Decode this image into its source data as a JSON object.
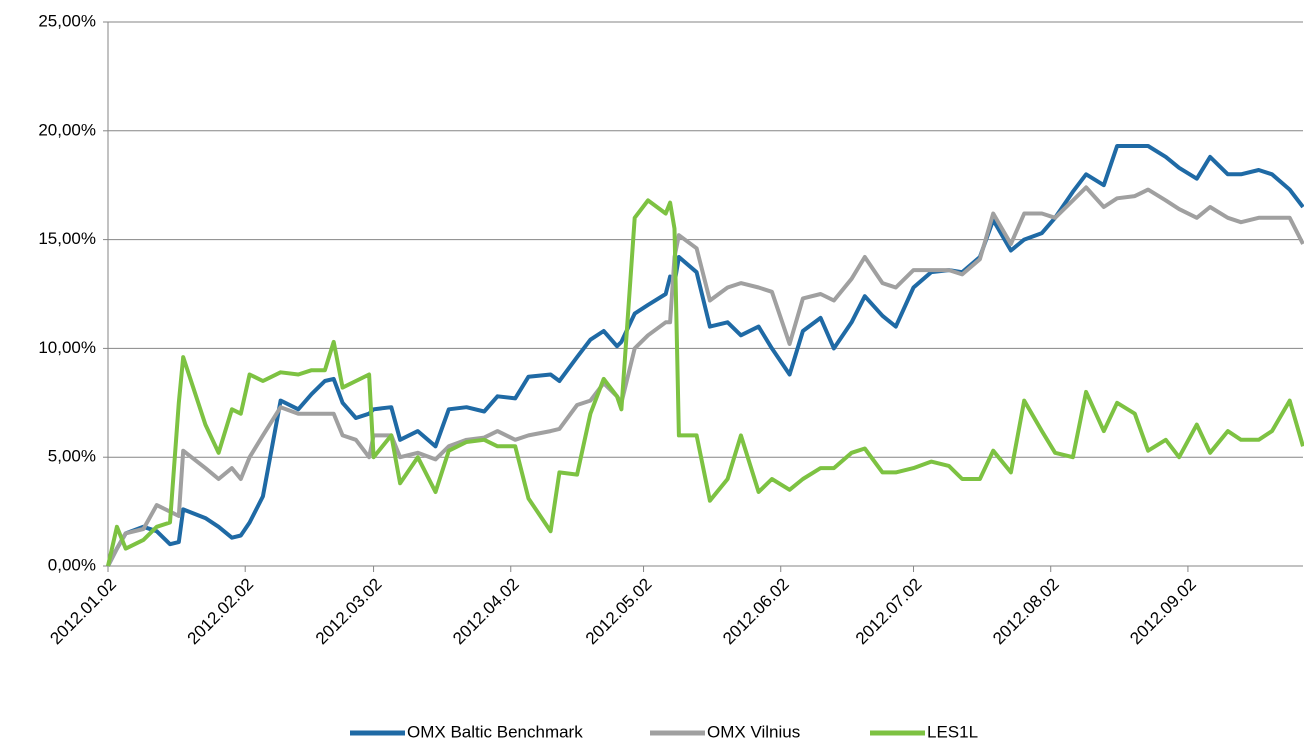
{
  "chart_data": {
    "type": "line",
    "x": [
      "2012.01.02",
      "2012.01.04",
      "2012.01.06",
      "2012.01.10",
      "2012.01.13",
      "2012.01.16",
      "2012.01.18",
      "2012.01.19",
      "2012.01.24",
      "2012.01.27",
      "2012.01.30",
      "2012.02.01",
      "2012.02.03",
      "2012.02.06",
      "2012.02.10",
      "2012.02.14",
      "2012.02.17",
      "2012.02.20",
      "2012.02.22",
      "2012.02.24",
      "2012.02.27",
      "2012.03.01",
      "2012.03.02",
      "2012.03.06",
      "2012.03.08",
      "2012.03.12",
      "2012.03.16",
      "2012.03.19",
      "2012.03.23",
      "2012.03.27",
      "2012.03.30",
      "2012.04.03",
      "2012.04.06",
      "2012.04.11",
      "2012.04.13",
      "2012.04.17",
      "2012.04.20",
      "2012.04.23",
      "2012.04.26",
      "2012.04.27",
      "2012.04.30",
      "2012.05.03",
      "2012.05.07",
      "2012.05.08",
      "2012.05.09",
      "2012.05.10",
      "2012.05.14",
      "2012.05.17",
      "2012.05.21",
      "2012.05.24",
      "2012.05.28",
      "2012.05.31",
      "2012.06.04",
      "2012.06.07",
      "2012.06.11",
      "2012.06.14",
      "2012.06.18",
      "2012.06.21",
      "2012.06.25",
      "2012.06.28",
      "2012.07.02",
      "2012.07.06",
      "2012.07.10",
      "2012.07.13",
      "2012.07.17",
      "2012.07.20",
      "2012.07.24",
      "2012.07.27",
      "2012.07.31",
      "2012.08.03",
      "2012.08.07",
      "2012.08.10",
      "2012.08.14",
      "2012.08.17",
      "2012.08.21",
      "2012.08.24",
      "2012.08.28",
      "2012.08.31",
      "2012.09.04",
      "2012.09.07",
      "2012.09.11",
      "2012.09.14",
      "2012.09.18",
      "2012.09.21",
      "2012.09.25",
      "2012.09.28"
    ],
    "series": [
      {
        "name": "OMX Baltic Benchmark",
        "color": "#1f6aa5",
        "values": [
          0,
          0.8,
          1.5,
          1.8,
          1.6,
          1.0,
          1.1,
          2.6,
          2.2,
          1.8,
          1.3,
          1.4,
          2.0,
          3.2,
          7.6,
          7.2,
          7.9,
          8.5,
          8.6,
          7.5,
          6.8,
          7.0,
          7.2,
          7.3,
          5.8,
          6.2,
          5.5,
          7.2,
          7.3,
          7.1,
          7.8,
          7.7,
          8.7,
          8.8,
          8.5,
          9.6,
          10.4,
          10.8,
          10.1,
          10.3,
          11.6,
          12.0,
          12.5,
          13.3,
          13.0,
          14.2,
          13.5,
          11.0,
          11.2,
          10.6,
          11.0,
          10.0,
          8.8,
          10.8,
          11.4,
          10.0,
          11.2,
          12.4,
          11.5,
          11.0,
          12.8,
          13.5,
          13.6,
          13.5,
          14.2,
          15.9,
          14.5,
          15.0,
          15.3,
          16.0,
          17.2,
          18.0,
          17.5,
          19.3,
          19.3,
          19.3,
          18.8,
          18.3,
          17.8,
          18.8,
          18.0,
          18.0,
          18.2,
          18.0,
          17.3,
          16.5
        ]
      },
      {
        "name": "OMX Vilnius",
        "color": "#a0a0a0",
        "values": [
          0,
          0.8,
          1.5,
          1.7,
          2.8,
          2.5,
          2.3,
          5.3,
          4.5,
          4.0,
          4.5,
          4.0,
          5.0,
          6.0,
          7.3,
          7.0,
          7.0,
          7.0,
          7.0,
          6.0,
          5.8,
          5.0,
          6.0,
          6.0,
          5.0,
          5.2,
          4.9,
          5.5,
          5.8,
          5.9,
          6.2,
          5.8,
          6.0,
          6.2,
          6.3,
          7.4,
          7.6,
          8.4,
          7.8,
          7.5,
          10.0,
          10.6,
          11.2,
          11.2,
          14.2,
          15.2,
          14.6,
          12.2,
          12.8,
          13.0,
          12.8,
          12.6,
          10.2,
          12.3,
          12.5,
          12.2,
          13.2,
          14.2,
          13.0,
          12.8,
          13.6,
          13.6,
          13.6,
          13.4,
          14.1,
          16.2,
          14.8,
          16.2,
          16.2,
          16.0,
          16.8,
          17.4,
          16.5,
          16.9,
          17.0,
          17.3,
          16.8,
          16.4,
          16.0,
          16.5,
          16.0,
          15.8,
          16.0,
          16.0,
          16.0,
          14.8
        ]
      },
      {
        "name": "LES1L",
        "color": "#7dc242",
        "values": [
          0,
          1.8,
          0.8,
          1.2,
          1.8,
          2.0,
          7.5,
          9.6,
          6.5,
          5.2,
          7.2,
          7.0,
          8.8,
          8.5,
          8.9,
          8.8,
          9.0,
          9.0,
          10.3,
          8.2,
          8.5,
          8.8,
          5.0,
          6.0,
          3.8,
          5.0,
          3.4,
          5.3,
          5.7,
          5.8,
          5.5,
          5.5,
          3.1,
          1.6,
          4.3,
          4.2,
          7.0,
          8.6,
          7.8,
          7.2,
          16.0,
          16.8,
          16.2,
          16.7,
          15.5,
          6.0,
          6.0,
          3.0,
          4.0,
          6.0,
          3.4,
          4.0,
          3.5,
          4.0,
          4.5,
          4.5,
          5.2,
          5.4,
          4.3,
          4.3,
          4.5,
          4.8,
          4.6,
          4.0,
          4.0,
          5.3,
          4.3,
          7.6,
          6.2,
          5.2,
          5.0,
          8.0,
          6.2,
          7.5,
          7.0,
          5.3,
          5.8,
          5.0,
          6.5,
          5.2,
          6.2,
          5.8,
          5.8,
          6.2,
          7.6,
          5.5
        ]
      }
    ],
    "xlim": [
      "2012.01.02",
      "2012.09.28"
    ],
    "xticks": [
      "2012.01.02",
      "2012.02.02",
      "2012.03.02",
      "2012.04.02",
      "2012.05.02",
      "2012.06.02",
      "2012.07.02",
      "2012.08.02",
      "2012.09.02"
    ],
    "ylim": [
      0,
      25
    ],
    "yticks": [
      {
        "value": 0,
        "label": "0,00%"
      },
      {
        "value": 5,
        "label": "5,00%"
      },
      {
        "value": 10,
        "label": "10,00%"
      },
      {
        "value": 15,
        "label": "15,00%"
      },
      {
        "value": 20,
        "label": "20,00%"
      },
      {
        "value": 25,
        "label": "25,00%"
      }
    ],
    "grid": true,
    "legend": "bottom"
  }
}
